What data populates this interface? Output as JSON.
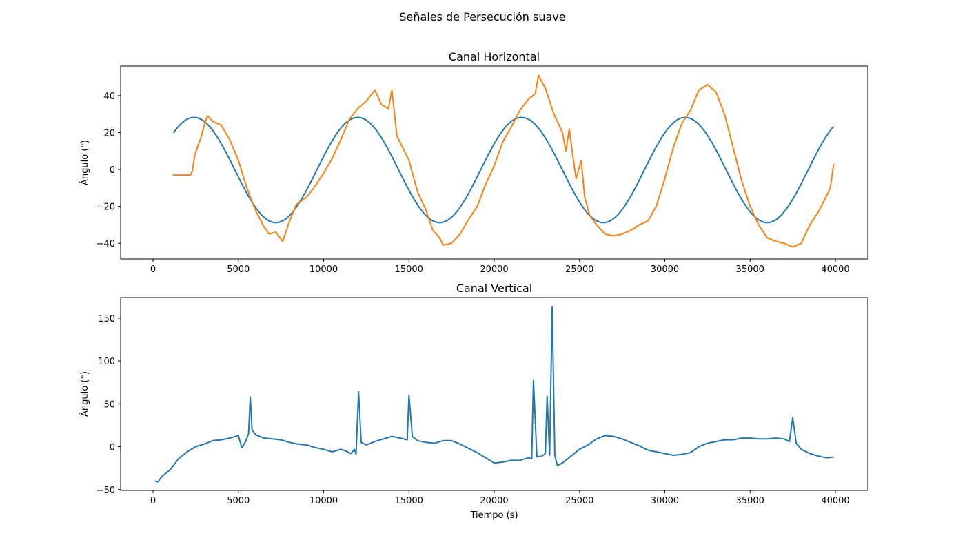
{
  "figure": {
    "suptitle": "Señales de Persecución suave"
  },
  "chart_data": [
    {
      "type": "line",
      "title": "Canal Horizontal",
      "xlabel": "",
      "ylabel": "Ángulo (°)",
      "xlim": [
        -1900,
        41900
      ],
      "ylim": [
        -48.5,
        56
      ],
      "xticks": [
        0,
        5000,
        10000,
        15000,
        20000,
        25000,
        30000,
        35000,
        40000
      ],
      "yticks": [
        -40,
        -20,
        0,
        20,
        40
      ],
      "grid": false,
      "legend": "none",
      "series": [
        {
          "color": "#1f77b4",
          "generator": "sine",
          "amplitude": 28.5,
          "offset": -0.3,
          "period": 9600,
          "peak_x": 2400,
          "x_start": 1200,
          "x_end": 39900
        },
        {
          "color": "#ff7f0e",
          "points": [
            [
              1150,
              -3
            ],
            [
              2200,
              -3
            ],
            [
              2300,
              -1
            ],
            [
              2450,
              8
            ],
            [
              2800,
              17
            ],
            [
              3000,
              24
            ],
            [
              3200,
              29
            ],
            [
              3500,
              26
            ],
            [
              4000,
              24
            ],
            [
              4500,
              16
            ],
            [
              5000,
              5
            ],
            [
              5500,
              -10
            ],
            [
              6000,
              -22
            ],
            [
              6500,
              -31
            ],
            [
              6800,
              -35
            ],
            [
              7200,
              -34
            ],
            [
              7600,
              -39
            ],
            [
              8000,
              -28
            ],
            [
              8400,
              -19
            ],
            [
              9000,
              -15
            ],
            [
              9500,
              -9
            ],
            [
              10000,
              -2
            ],
            [
              10500,
              6
            ],
            [
              11000,
              16
            ],
            [
              11500,
              27
            ],
            [
              12000,
              33
            ],
            [
              12500,
              37
            ],
            [
              13000,
              43
            ],
            [
              13400,
              35
            ],
            [
              13800,
              33
            ],
            [
              14000,
              43
            ],
            [
              14300,
              18
            ],
            [
              15000,
              5
            ],
            [
              15500,
              -12
            ],
            [
              16000,
              -22
            ],
            [
              16400,
              -33
            ],
            [
              16800,
              -37
            ],
            [
              17000,
              -41
            ],
            [
              17500,
              -40
            ],
            [
              18000,
              -35
            ],
            [
              18500,
              -27
            ],
            [
              19000,
              -20
            ],
            [
              19500,
              -8
            ],
            [
              20000,
              2
            ],
            [
              20500,
              15
            ],
            [
              21000,
              23
            ],
            [
              21500,
              32
            ],
            [
              22000,
              38
            ],
            [
              22400,
              41
            ],
            [
              22600,
              51
            ],
            [
              23000,
              44
            ],
            [
              23500,
              30
            ],
            [
              24000,
              20
            ],
            [
              24200,
              10
            ],
            [
              24400,
              22
            ],
            [
              24600,
              8
            ],
            [
              24800,
              -5
            ],
            [
              25100,
              5
            ],
            [
              25300,
              -15
            ],
            [
              25600,
              -25
            ],
            [
              26000,
              -30
            ],
            [
              26500,
              -35
            ],
            [
              27000,
              -36
            ],
            [
              27500,
              -35
            ],
            [
              28000,
              -33
            ],
            [
              28500,
              -30
            ],
            [
              29000,
              -28
            ],
            [
              29500,
              -20
            ],
            [
              30000,
              -5
            ],
            [
              30500,
              12
            ],
            [
              31000,
              25
            ],
            [
              31500,
              32
            ],
            [
              32000,
              43
            ],
            [
              32500,
              46
            ],
            [
              33000,
              42
            ],
            [
              33500,
              30
            ],
            [
              34000,
              12
            ],
            [
              34500,
              -6
            ],
            [
              35000,
              -20
            ],
            [
              35500,
              -30
            ],
            [
              36000,
              -37
            ],
            [
              36500,
              -39
            ],
            [
              37000,
              -40
            ],
            [
              37500,
              -42
            ],
            [
              38000,
              -40
            ],
            [
              38500,
              -30
            ],
            [
              39000,
              -23
            ],
            [
              39500,
              -14
            ],
            [
              39700,
              -10
            ],
            [
              39900,
              3
            ]
          ]
        }
      ]
    },
    {
      "type": "line",
      "title": "Canal Vertical",
      "xlabel": "Tiempo (s)",
      "ylabel": "Ángulo (°)",
      "xlim": [
        -1900,
        41900
      ],
      "ylim": [
        -51,
        174
      ],
      "xticks": [
        0,
        5000,
        10000,
        15000,
        20000,
        25000,
        30000,
        35000,
        40000
      ],
      "yticks": [
        -50,
        0,
        50,
        100,
        150
      ],
      "grid": false,
      "legend": "none",
      "series": [
        {
          "color": "#1f77b4",
          "points": [
            [
              100,
              -40
            ],
            [
              300,
              -41
            ],
            [
              500,
              -35
            ],
            [
              1000,
              -27
            ],
            [
              1500,
              -14
            ],
            [
              2000,
              -6
            ],
            [
              2500,
              0
            ],
            [
              3000,
              3
            ],
            [
              3500,
              7
            ],
            [
              4000,
              8
            ],
            [
              4500,
              10
            ],
            [
              5000,
              13
            ],
            [
              5200,
              -1
            ],
            [
              5400,
              5
            ],
            [
              5600,
              15
            ],
            [
              5700,
              58
            ],
            [
              5800,
              20
            ],
            [
              6000,
              14
            ],
            [
              6500,
              10
            ],
            [
              7000,
              9
            ],
            [
              7500,
              8
            ],
            [
              8000,
              5
            ],
            [
              8500,
              3
            ],
            [
              9000,
              2
            ],
            [
              9500,
              -1
            ],
            [
              10000,
              -3
            ],
            [
              10500,
              -6
            ],
            [
              11000,
              -3
            ],
            [
              11300,
              -5
            ],
            [
              11600,
              -8
            ],
            [
              11800,
              -3
            ],
            [
              11900,
              -9
            ],
            [
              12050,
              64
            ],
            [
              12200,
              5
            ],
            [
              12500,
              2
            ],
            [
              13000,
              6
            ],
            [
              13500,
              9
            ],
            [
              14000,
              12
            ],
            [
              14500,
              10
            ],
            [
              14900,
              8
            ],
            [
              15000,
              60
            ],
            [
              15200,
              12
            ],
            [
              15500,
              7
            ],
            [
              16000,
              5
            ],
            [
              16500,
              4
            ],
            [
              17000,
              7
            ],
            [
              17500,
              7
            ],
            [
              18000,
              3
            ],
            [
              18500,
              -2
            ],
            [
              19000,
              -7
            ],
            [
              19500,
              -13
            ],
            [
              20000,
              -19
            ],
            [
              20500,
              -18
            ],
            [
              21000,
              -16
            ],
            [
              21500,
              -16
            ],
            [
              22000,
              -13
            ],
            [
              22200,
              -14
            ],
            [
              22300,
              78
            ],
            [
              22500,
              -12
            ],
            [
              22800,
              -11
            ],
            [
              23000,
              -8
            ],
            [
              23100,
              59
            ],
            [
              23250,
              -10
            ],
            [
              23400,
              163
            ],
            [
              23550,
              -10
            ],
            [
              23700,
              -22
            ],
            [
              24000,
              -19
            ],
            [
              24500,
              -11
            ],
            [
              25000,
              -3
            ],
            [
              25500,
              2
            ],
            [
              26000,
              9
            ],
            [
              26500,
              13
            ],
            [
              27000,
              12
            ],
            [
              27500,
              9
            ],
            [
              28000,
              5
            ],
            [
              28500,
              1
            ],
            [
              29000,
              -4
            ],
            [
              29500,
              -6
            ],
            [
              30000,
              -8
            ],
            [
              30500,
              -10
            ],
            [
              31000,
              -9
            ],
            [
              31500,
              -7
            ],
            [
              32000,
              0
            ],
            [
              32500,
              4
            ],
            [
              33000,
              6
            ],
            [
              33500,
              8
            ],
            [
              34000,
              8
            ],
            [
              34500,
              10
            ],
            [
              35000,
              10
            ],
            [
              35500,
              9
            ],
            [
              36000,
              9
            ],
            [
              36500,
              10
            ],
            [
              37000,
              9
            ],
            [
              37300,
              6
            ],
            [
              37500,
              34
            ],
            [
              37700,
              4
            ],
            [
              38000,
              -3
            ],
            [
              38500,
              -8
            ],
            [
              39000,
              -11
            ],
            [
              39500,
              -13
            ],
            [
              39900,
              -12
            ]
          ]
        }
      ]
    }
  ]
}
